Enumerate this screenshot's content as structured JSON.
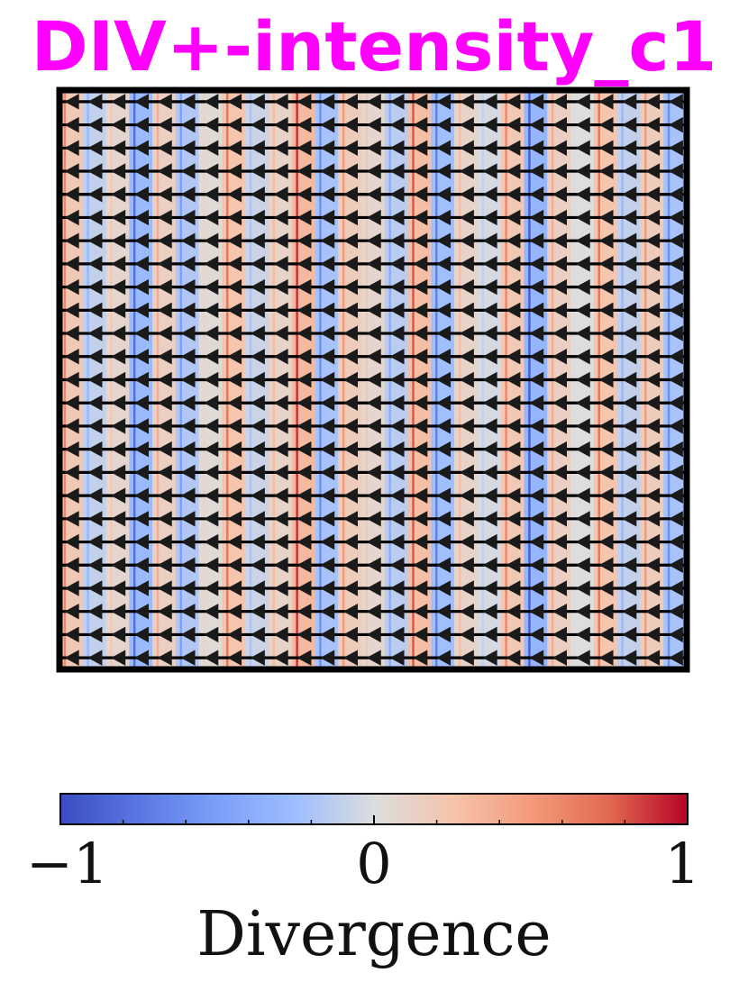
{
  "title": "DIV+-intensity_c1",
  "colors": {
    "title": "#ff00ff",
    "frame": "#000000",
    "arrow": "#000000",
    "cmap_low": "#3b4cc0",
    "cmap_mid": "#dddddd",
    "cmap_high": "#b40426"
  },
  "chart_data": {
    "type": "heatmap",
    "title": "DIV+-intensity_c1",
    "grid": {
      "columns": 27,
      "rows": 25
    },
    "column_divergence": [
      0.6,
      -0.3,
      0.2,
      -0.8,
      0.4,
      -0.5,
      0.1,
      0.7,
      -0.2,
      0.3,
      0.9,
      -0.6,
      0.5,
      0.2,
      -0.4,
      0.8,
      -0.7,
      0.3,
      -0.1,
      0.6,
      -0.9,
      0.4,
      0.0,
      0.7,
      -0.3,
      0.5,
      -0.6
    ],
    "vector_field": {
      "direction": "left",
      "count": 675
    },
    "colorbar": {
      "label": "Divergence",
      "min": -1,
      "max": 1,
      "ticks": [
        -1,
        0,
        1
      ],
      "tick_labels": [
        "−1",
        "0",
        "1"
      ],
      "minor_ticks": [
        -0.8,
        -0.6,
        -0.4,
        -0.2,
        0.2,
        0.4,
        0.6,
        0.8
      ],
      "colormap": "coolwarm",
      "orientation": "horizontal",
      "placement": "bottom"
    }
  }
}
